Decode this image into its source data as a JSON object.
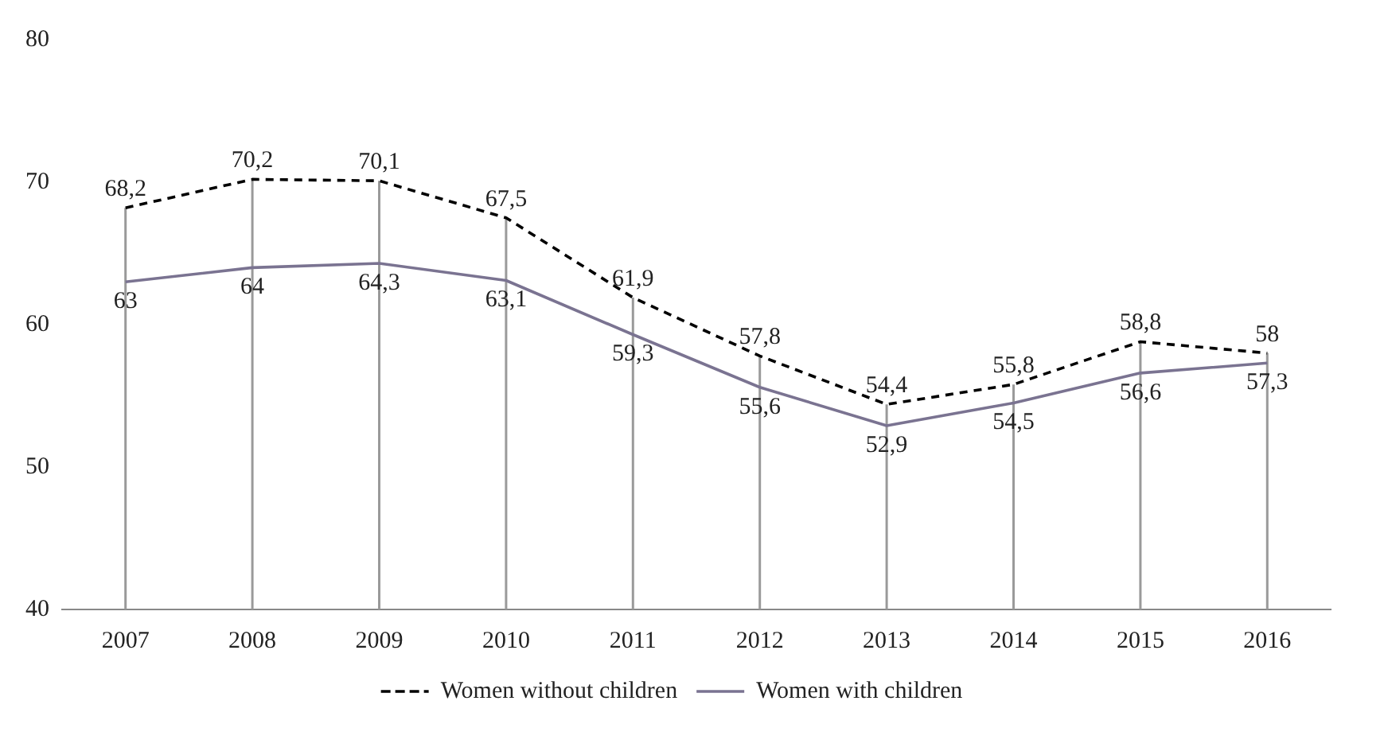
{
  "chart_data": {
    "type": "line",
    "categories": [
      "2007",
      "2008",
      "2009",
      "2010",
      "2011",
      "2012",
      "2013",
      "2014",
      "2015",
      "2016"
    ],
    "series": [
      {
        "name": "Women without children",
        "color": "#000000",
        "line_style": "dashed",
        "values": [
          68.2,
          70.2,
          70.1,
          67.5,
          61.9,
          57.8,
          54.4,
          55.8,
          58.8,
          58
        ],
        "value_labels": [
          "68,2",
          "70,2",
          "70,1",
          "67,5",
          "61,9",
          "57,8",
          "54,4",
          "55,8",
          "58,8",
          "58"
        ]
      },
      {
        "name": "Women with children",
        "color": "#7a7391",
        "line_style": "solid",
        "values": [
          63,
          64,
          64.3,
          63.1,
          59.3,
          55.6,
          52.9,
          54.5,
          56.6,
          57.3
        ],
        "value_labels": [
          "63",
          "64",
          "64,3",
          "63,1",
          "59,3",
          "55,6",
          "52,9",
          "54,5",
          "56,6",
          "57,3"
        ]
      }
    ],
    "ylim": [
      40,
      80
    ],
    "yticks": [
      40,
      50,
      60,
      70,
      80
    ],
    "grid": "x",
    "legend": "bottom",
    "marker": "none"
  }
}
